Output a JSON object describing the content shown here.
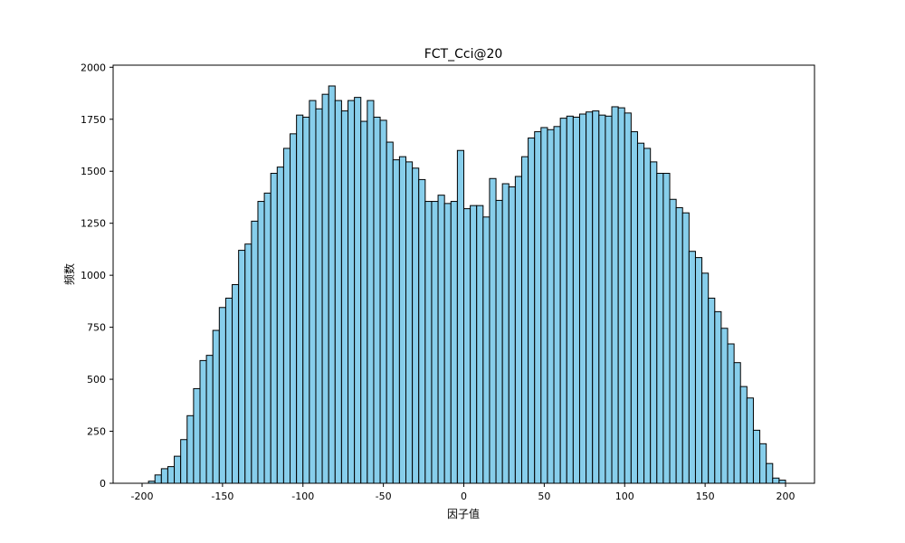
{
  "chart_data": {
    "type": "bar",
    "title": "FCT_Cci@20",
    "xlabel": "因子值",
    "ylabel": "频数",
    "xlim": [
      -200,
      200
    ],
    "ylim": [
      0,
      2000
    ],
    "x_ticks": [
      -200,
      -150,
      -100,
      -50,
      0,
      50,
      100,
      150,
      200
    ],
    "y_ticks": [
      0,
      250,
      500,
      750,
      1000,
      1250,
      1500,
      1750,
      2000
    ],
    "bin_start": -200,
    "bin_width": 4,
    "values": [
      0,
      10,
      40,
      70,
      80,
      130,
      210,
      325,
      455,
      590,
      615,
      735,
      845,
      890,
      955,
      1120,
      1150,
      1260,
      1355,
      1395,
      1490,
      1520,
      1610,
      1680,
      1770,
      1760,
      1840,
      1800,
      1870,
      1910,
      1840,
      1790,
      1840,
      1855,
      1740,
      1840,
      1760,
      1745,
      1640,
      1555,
      1570,
      1545,
      1515,
      1460,
      1355,
      1355,
      1385,
      1345,
      1355,
      1600,
      1320,
      1335,
      1335,
      1280,
      1465,
      1360,
      1440,
      1425,
      1475,
      1570,
      1660,
      1690,
      1710,
      1700,
      1715,
      1755,
      1765,
      1760,
      1775,
      1785,
      1790,
      1770,
      1765,
      1810,
      1805,
      1780,
      1690,
      1635,
      1610,
      1545,
      1490,
      1490,
      1365,
      1325,
      1300,
      1115,
      1085,
      1010,
      890,
      825,
      745,
      670,
      580,
      465,
      410,
      255,
      190,
      95,
      25,
      15
    ],
    "bar_color": "#87ceeb",
    "edge_color": "#000000",
    "grid": false
  }
}
